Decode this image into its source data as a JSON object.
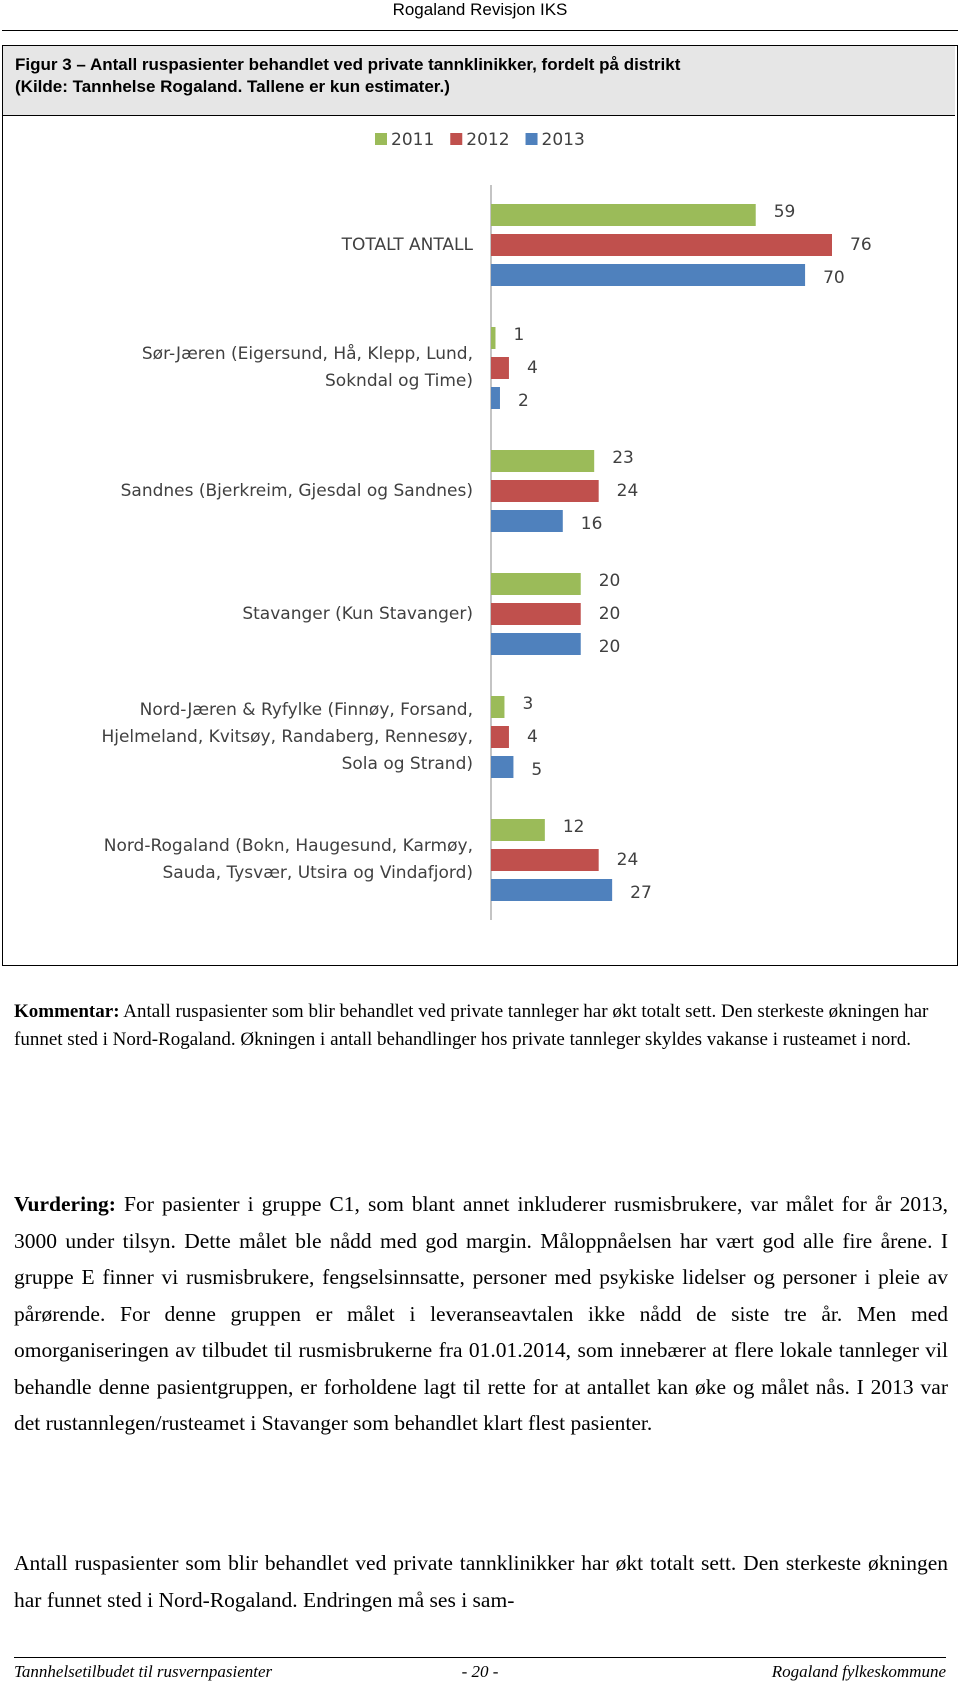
{
  "header": {
    "title": "Rogaland Revisjon IKS"
  },
  "figure": {
    "caption": [
      "Figur 3 – Antall ruspasienter behandlet ved private tannklinikker, fordelt på distrikt",
      "(Kilde: Tannhelse Rogaland. Tallene er kun estimater.)"
    ]
  },
  "chart_data": {
    "type": "bar",
    "orientation": "horizontal",
    "categories": [
      "TOTALT ANTALL",
      "Sør-Jæren (Eigersund, Hå, Klepp, Lund, Sokndal og Time)",
      "Sandnes (Bjerkreim, Gjesdal og Sandnes)",
      "Stavanger (Kun Stavanger)",
      "Nord-Jæren & Ryfylke (Finnøy, Forsand, Hjelmeland, Kvitsøy, Randaberg, Rennesøy, Sola og Strand)",
      "Nord-Rogaland (Bokn, Haugesund, Karmøy, Sauda, Tysvær, Utsira og Vindafjord)"
    ],
    "series": [
      {
        "name": "2011",
        "color": "#9bbb59",
        "values": [
          59,
          1,
          23,
          20,
          3,
          12
        ]
      },
      {
        "name": "2012",
        "color": "#c0504d",
        "values": [
          76,
          4,
          24,
          20,
          4,
          24
        ]
      },
      {
        "name": "2013",
        "color": "#4f81bd",
        "values": [
          70,
          2,
          16,
          20,
          5,
          27
        ]
      }
    ],
    "legend": "top"
  },
  "comment": {
    "lead": "Kommentar:",
    "text": "Antall ruspasienter som blir behandlet ved private tannleger har økt totalt sett. Den sterkeste økningen har funnet sted i Nord-Rogaland. Økningen i antall behandlinger hos private tannleger skyldes vakanse i rusteamet i nord."
  },
  "assessment": {
    "lead": "Vurdering:",
    "text": "For pasienter i gruppe C1, som blant annet inkluderer rusmisbrukere, var målet for år 2013, 3000 under tilsyn. Dette målet ble nådd med god margin. Måloppnåelsen har vært god alle fire årene. I gruppe E finner vi rusmisbrukere, fengselsinnsatte, personer med psykiske lidelser og personer i pleie av pårørende. For denne gruppen er målet i leveranseavtalen ikke nådd de siste tre år. Men med omorganiseringen av tilbudet til rusmisbrukerne fra 01.01.2014, som innebærer at flere lokale tannleger vil behandle denne pasientgruppen, er forholdene lagt til rette for at antallet kan øke og målet nås. I 2013 var det rustannlegen/rusteamet i Stavanger som behandlet klart flest pasienter."
  },
  "paragraph": "Antall ruspasienter som blir behandlet ved private tannklinikker har økt totalt sett. Den sterkeste økningen har funnet sted i Nord-Rogaland. Endringen må ses i sam-",
  "footer": {
    "left": "Tannhelsetilbudet til rusvernpasienter",
    "center": "- 20 -",
    "right": "Rogaland fylkeskommune"
  }
}
